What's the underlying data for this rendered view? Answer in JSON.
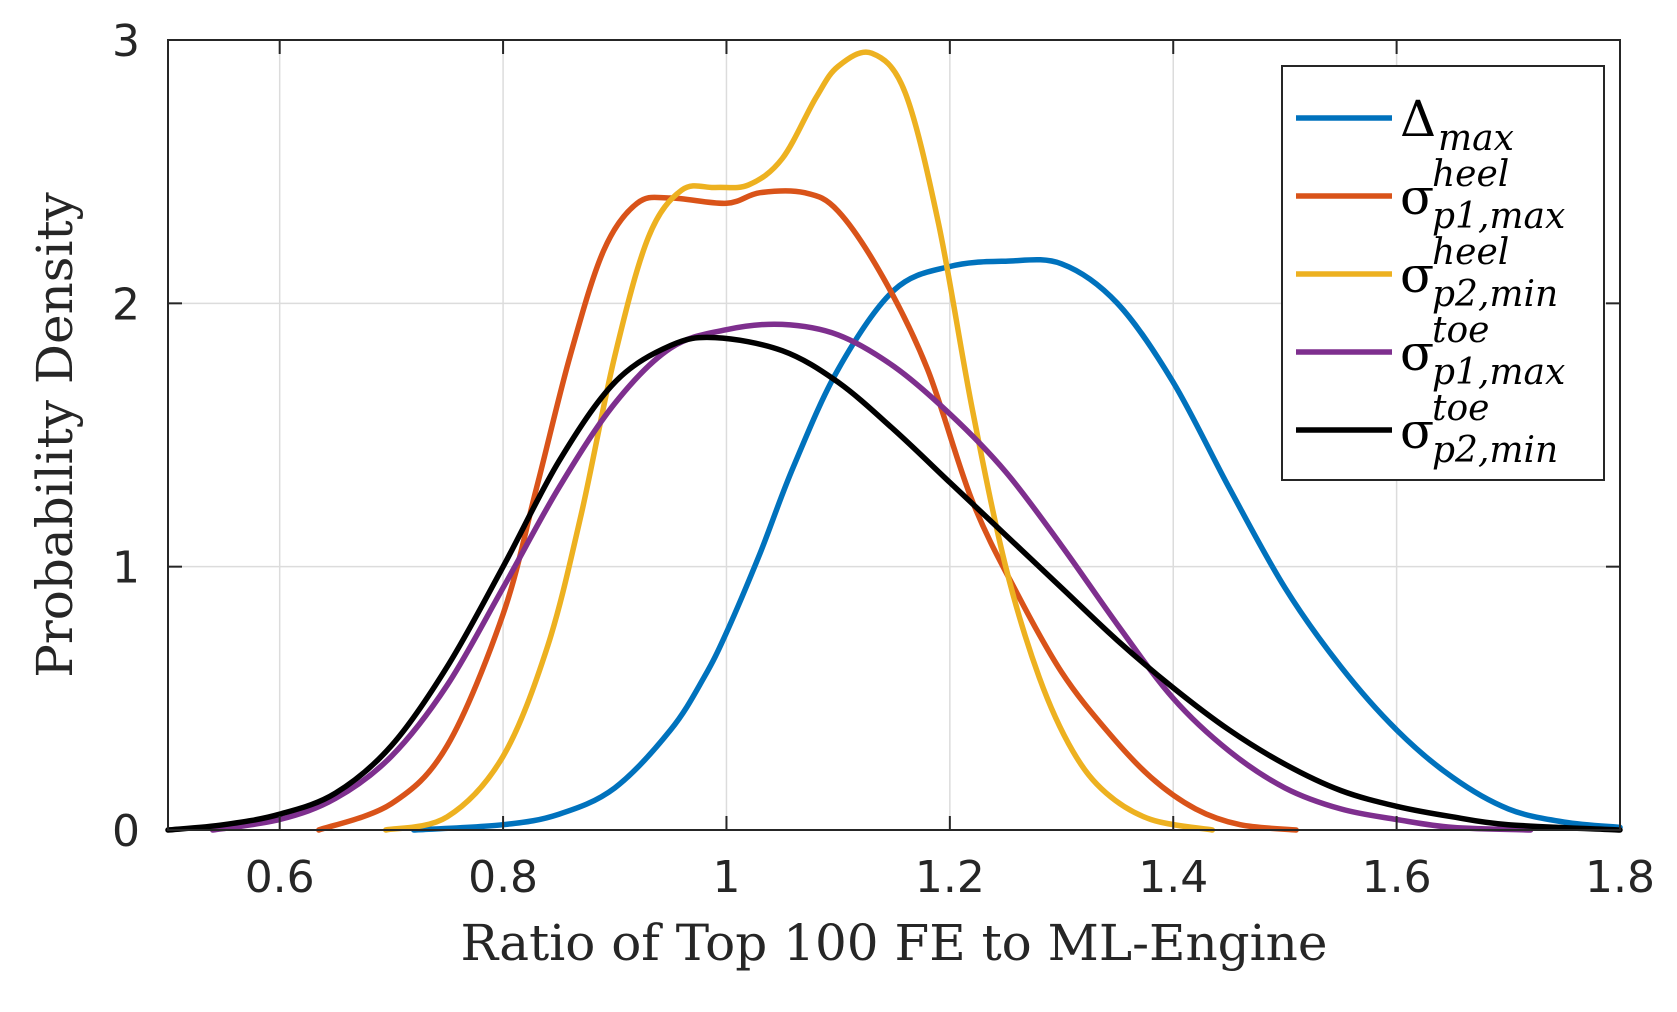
{
  "chart_data": {
    "type": "line",
    "xlabel": "Ratio of Top 100 FE to ML-Engine",
    "ylabel": "Probability Density",
    "xlim": [
      0.5,
      1.8
    ],
    "ylim": [
      0,
      3
    ],
    "xticks": [
      0.6,
      0.8,
      1.0,
      1.2,
      1.4,
      1.6,
      1.8
    ],
    "xtick_labels": [
      "0.6",
      "0.8",
      "1",
      "1.2",
      "1.4",
      "1.6",
      "1.8"
    ],
    "yticks": [
      0,
      1,
      2,
      3
    ],
    "ytick_labels": [
      "0",
      "1",
      "2",
      "3"
    ],
    "grid": true,
    "legend_position": "top-right",
    "series": [
      {
        "name": "Δmax",
        "legend_main": "Δ",
        "legend_sup": "",
        "legend_sub": "max",
        "color": "#0072BD",
        "x": [
          0.72,
          0.8,
          0.85,
          0.9,
          0.95,
          0.98,
          1.0,
          1.03,
          1.06,
          1.1,
          1.15,
          1.2,
          1.25,
          1.3,
          1.35,
          1.4,
          1.45,
          1.5,
          1.55,
          1.6,
          1.65,
          1.7,
          1.75,
          1.8
        ],
        "y": [
          0.0,
          0.02,
          0.06,
          0.16,
          0.38,
          0.58,
          0.75,
          1.05,
          1.38,
          1.75,
          2.05,
          2.14,
          2.16,
          2.15,
          2.0,
          1.7,
          1.3,
          0.92,
          0.62,
          0.38,
          0.2,
          0.08,
          0.03,
          0.01
        ]
      },
      {
        "name": "σp1,maxheel",
        "legend_main": "σ",
        "legend_sup": "heel",
        "legend_sub": "p1,max",
        "color": "#D95319",
        "x": [
          0.635,
          0.7,
          0.75,
          0.8,
          0.83,
          0.86,
          0.89,
          0.92,
          0.95,
          1.0,
          1.03,
          1.07,
          1.1,
          1.14,
          1.18,
          1.22,
          1.26,
          1.3,
          1.34,
          1.38,
          1.42,
          1.46,
          1.51
        ],
        "y": [
          0.0,
          0.1,
          0.32,
          0.82,
          1.3,
          1.8,
          2.2,
          2.38,
          2.4,
          2.38,
          2.42,
          2.42,
          2.35,
          2.1,
          1.75,
          1.25,
          0.9,
          0.6,
          0.38,
          0.2,
          0.08,
          0.02,
          0.0
        ]
      },
      {
        "name": "σp2,minheel",
        "legend_main": "σ",
        "legend_sup": "heel",
        "legend_sub": "p2,min",
        "color": "#EDB120",
        "x": [
          0.695,
          0.75,
          0.8,
          0.84,
          0.87,
          0.9,
          0.93,
          0.96,
          0.99,
          1.02,
          1.05,
          1.08,
          1.1,
          1.13,
          1.16,
          1.19,
          1.22,
          1.25,
          1.28,
          1.31,
          1.34,
          1.38,
          1.435
        ],
        "y": [
          0.0,
          0.05,
          0.28,
          0.7,
          1.2,
          1.8,
          2.25,
          2.43,
          2.44,
          2.45,
          2.55,
          2.78,
          2.9,
          2.95,
          2.8,
          2.3,
          1.6,
          1.0,
          0.58,
          0.3,
          0.14,
          0.04,
          0.0
        ]
      },
      {
        "name": "σp1,maxtoe",
        "legend_main": "σ",
        "legend_sup": "toe",
        "legend_sub": "p1,max",
        "color": "#7E2F8E",
        "x": [
          0.54,
          0.6,
          0.65,
          0.7,
          0.75,
          0.8,
          0.85,
          0.9,
          0.95,
          1.0,
          1.05,
          1.1,
          1.15,
          1.2,
          1.25,
          1.3,
          1.35,
          1.4,
          1.45,
          1.5,
          1.55,
          1.6,
          1.65,
          1.72
        ],
        "y": [
          0.0,
          0.04,
          0.12,
          0.28,
          0.55,
          0.92,
          1.3,
          1.62,
          1.83,
          1.9,
          1.92,
          1.88,
          1.76,
          1.58,
          1.36,
          1.08,
          0.78,
          0.5,
          0.3,
          0.16,
          0.08,
          0.04,
          0.01,
          0.0
        ]
      },
      {
        "name": "σp2,mintoe",
        "legend_main": "σ",
        "legend_sup": "toe",
        "legend_sub": "p2,min",
        "color": "#000000",
        "x": [
          0.5,
          0.55,
          0.6,
          0.65,
          0.7,
          0.75,
          0.8,
          0.85,
          0.9,
          0.95,
          0.99,
          1.05,
          1.1,
          1.15,
          1.2,
          1.25,
          1.3,
          1.35,
          1.4,
          1.45,
          1.5,
          1.55,
          1.6,
          1.65,
          1.7,
          1.8
        ],
        "y": [
          0.0,
          0.02,
          0.06,
          0.14,
          0.32,
          0.62,
          1.0,
          1.4,
          1.7,
          1.84,
          1.87,
          1.82,
          1.7,
          1.52,
          1.32,
          1.12,
          0.92,
          0.72,
          0.54,
          0.38,
          0.25,
          0.15,
          0.09,
          0.05,
          0.02,
          0.0
        ]
      }
    ]
  }
}
